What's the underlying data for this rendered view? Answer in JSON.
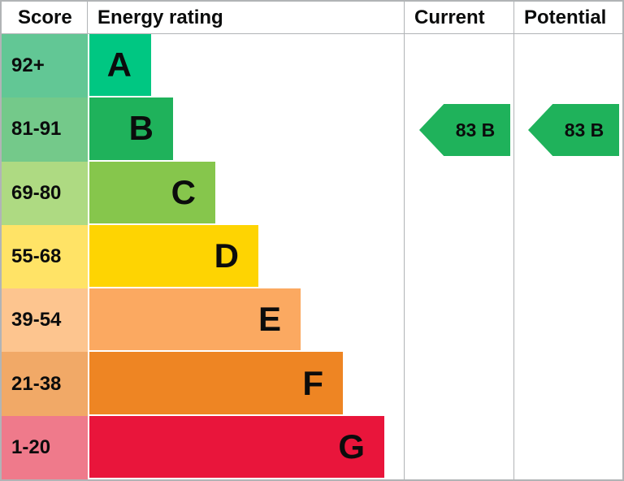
{
  "header": {
    "score": "Score",
    "energy_rating": "Energy rating",
    "current": "Current",
    "potential": "Potential"
  },
  "bands": [
    {
      "grade": "A",
      "score_range": "92+",
      "score_bg": "#62c795",
      "bar_bg": "#00c782"
    },
    {
      "grade": "B",
      "score_range": "81-91",
      "score_bg": "#74c98a",
      "bar_bg": "#1fb25b"
    },
    {
      "grade": "C",
      "score_range": "69-80",
      "score_bg": "#aeda82",
      "bar_bg": "#86c64c"
    },
    {
      "grade": "D",
      "score_range": "55-68",
      "score_bg": "#ffe366",
      "bar_bg": "#fed402"
    },
    {
      "grade": "E",
      "score_range": "39-54",
      "score_bg": "#fdc58f",
      "bar_bg": "#fba961"
    },
    {
      "grade": "F",
      "score_range": "21-38",
      "score_bg": "#f1a967",
      "bar_bg": "#ee8523"
    },
    {
      "grade": "G",
      "score_range": "1-20",
      "score_bg": "#ef7a8b",
      "bar_bg": "#e9153b"
    }
  ],
  "current": {
    "label": "83 B",
    "color": "#1fb25b"
  },
  "potential": {
    "label": "83 B",
    "color": "#1fb25b"
  },
  "border_color": "#b1b4b6",
  "chart_data": {
    "type": "bar",
    "title": "Energy rating (EPC band chart)",
    "columns": [
      "Score",
      "Energy rating",
      "Current",
      "Potential"
    ],
    "categories": [
      "A",
      "B",
      "C",
      "D",
      "E",
      "F",
      "G"
    ],
    "score_ranges": [
      "92+",
      "81-91",
      "69-80",
      "55-68",
      "39-54",
      "21-38",
      "1-20"
    ],
    "bar_relative_widths": [
      76,
      103,
      155,
      208,
      260,
      312,
      363
    ],
    "band_bar_colors": [
      "#00c782",
      "#1fb25b",
      "#86c64c",
      "#fed402",
      "#fba961",
      "#ee8523",
      "#e9153b"
    ],
    "band_score_colors": [
      "#62c795",
      "#74c98a",
      "#aeda82",
      "#ffe366",
      "#fdc58f",
      "#f1a967",
      "#ef7a8b"
    ],
    "current": {
      "score": 83,
      "grade": "B"
    },
    "potential": {
      "score": 83,
      "grade": "B"
    },
    "legend_position": "none",
    "grid": false
  }
}
